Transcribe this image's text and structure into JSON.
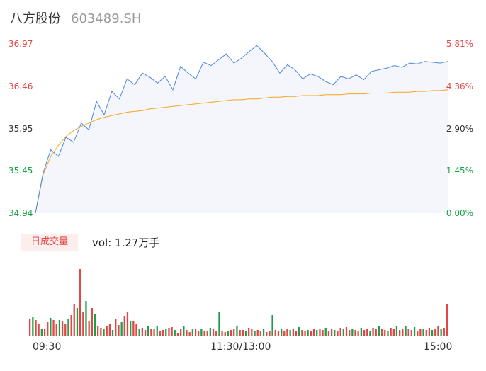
{
  "header": {
    "name": "八方股份",
    "code": "603489.SH"
  },
  "colors": {
    "up": "#e64545",
    "down": "#18a34a",
    "price_line": "#4a86e8",
    "avg_line": "#f5a623",
    "area": "#f4f6fb"
  },
  "volume_panel": {
    "badge": "日成交量",
    "vol_text": "vol: 1.27万手"
  },
  "chart_data": [
    {
      "type": "line",
      "y_ticks_left": [
        "36.97",
        "36.46",
        "35.95",
        "35.45",
        "34.94"
      ],
      "y_ticks_right": [
        "5.81%",
        "4.36%",
        "2.90%",
        "1.45%",
        "0.00%"
      ],
      "ylim": [
        34.94,
        36.97
      ],
      "x_ticks": [
        "09:30",
        "11:30/13:00",
        "15:00"
      ],
      "series": [
        {
          "key": "price",
          "values": [
            34.94,
            35.42,
            35.7,
            35.62,
            35.85,
            35.79,
            36.02,
            35.94,
            36.28,
            36.12,
            36.4,
            36.31,
            36.55,
            36.48,
            36.62,
            36.57,
            36.5,
            36.58,
            36.42,
            36.7,
            36.62,
            36.55,
            36.75,
            36.71,
            36.78,
            36.85,
            36.74,
            36.8,
            36.88,
            36.95,
            36.86,
            36.76,
            36.62,
            36.72,
            36.66,
            36.55,
            36.61,
            36.58,
            36.52,
            36.48,
            36.58,
            36.55,
            36.6,
            36.54,
            36.64,
            36.66,
            36.68,
            36.71,
            36.69,
            36.74,
            36.73,
            36.76,
            36.75,
            36.74,
            36.76
          ]
        },
        {
          "key": "average",
          "values": [
            34.94,
            35.4,
            35.62,
            35.75,
            35.86,
            35.93,
            35.98,
            36.02,
            36.06,
            36.09,
            36.11,
            36.13,
            36.15,
            36.16,
            36.17,
            36.19,
            36.2,
            36.21,
            36.22,
            36.23,
            36.24,
            36.25,
            36.26,
            36.27,
            36.28,
            36.29,
            36.3,
            36.3,
            36.31,
            36.31,
            36.32,
            36.33,
            36.33,
            36.34,
            36.34,
            36.35,
            36.35,
            36.35,
            36.36,
            36.36,
            36.36,
            36.37,
            36.37,
            36.37,
            36.38,
            36.38,
            36.38,
            36.39,
            36.39,
            36.39,
            36.4,
            36.4,
            36.41,
            36.41,
            36.42
          ]
        }
      ]
    },
    {
      "type": "bar",
      "title": "日成交量",
      "values": [
        25,
        27,
        23,
        18,
        11,
        10,
        20,
        26,
        23,
        18,
        23,
        21,
        18,
        24,
        30,
        45,
        40,
        95,
        35,
        50,
        22,
        40,
        31,
        15,
        12,
        11,
        15,
        18,
        9,
        25,
        16,
        20,
        28,
        35,
        22,
        22,
        18,
        11,
        12,
        9,
        14,
        11,
        10,
        15,
        8,
        9,
        11,
        12,
        13,
        9,
        5,
        11,
        14,
        9,
        6,
        11,
        10,
        8,
        10,
        8,
        7,
        12,
        10,
        8,
        35,
        8,
        6,
        7,
        9,
        11,
        15,
        9,
        9,
        7,
        12,
        10,
        8,
        9,
        7,
        11,
        6,
        8,
        30,
        9,
        7,
        11,
        8,
        10,
        9,
        10,
        7,
        13,
        9,
        8,
        9,
        7,
        10,
        9,
        11,
        9,
        12,
        8,
        10,
        9,
        8,
        12,
        11,
        13,
        9,
        10,
        9,
        7,
        12,
        9,
        10,
        8,
        12,
        11,
        14,
        10,
        9,
        7,
        12,
        10,
        15,
        9,
        11,
        14,
        10,
        9,
        13,
        8,
        11,
        10,
        9,
        12,
        9,
        11,
        14,
        10,
        12,
        45
      ]
    }
  ]
}
